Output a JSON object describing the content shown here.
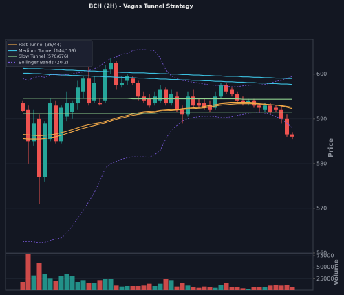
{
  "chart_data": {
    "type": "candlestick",
    "title": "BCH (2H) - Vegas Tunnel Strategy",
    "ylabel": "Price",
    "ylim": [
      560,
      607.8
    ],
    "yticks": [
      560,
      570,
      580,
      590,
      600
    ],
    "grid": true,
    "legend": "upper left",
    "up_color": "#26a69a",
    "down_color": "#ef5350",
    "ohlc": {
      "open": [
        593.5,
        592,
        585,
        590,
        577,
        585.5,
        593,
        585,
        590.5,
        591.5,
        593.5,
        596,
        599,
        594,
        593.5,
        594,
        601,
        602.5,
        597.5,
        598.5,
        599,
        598,
        595,
        594.5,
        593.5,
        594,
        596.5,
        593.5,
        595,
        592,
        591,
        595,
        593.5,
        593.5,
        593,
        592.5,
        595,
        597.5,
        596.5,
        595.5,
        594,
        593.5,
        594,
        593,
        592,
        593,
        592.5,
        592,
        590,
        586.5
      ],
      "high": [
        594,
        593,
        592,
        591,
        589.5,
        594.5,
        594,
        593,
        596,
        594,
        598.5,
        599.5,
        601.5,
        599.5,
        594.5,
        602,
        603.5,
        603,
        599.5,
        600,
        599.5,
        598.5,
        596,
        595.5,
        596,
        597.5,
        597,
        596.5,
        596,
        593,
        596,
        596.5,
        594.5,
        594.5,
        594,
        596,
        598,
        598,
        597,
        596,
        595,
        594.5,
        594.5,
        593.5,
        593.5,
        593.5,
        593,
        593,
        591,
        587
      ],
      "low": [
        591.5,
        580,
        584,
        571,
        576,
        585,
        584.5,
        584.5,
        589.5,
        590,
        592,
        594.5,
        593,
        593.5,
        593,
        593.5,
        600,
        596.5,
        597,
        597.5,
        597.5,
        594,
        593.5,
        592.5,
        593,
        593.5,
        593,
        593,
        591.5,
        589,
        590.5,
        592.5,
        592.5,
        592,
        591.5,
        592,
        594.5,
        595.5,
        595,
        593.5,
        593,
        593,
        592.5,
        591.5,
        591.5,
        591,
        591.5,
        589,
        586,
        585.5
      ],
      "close": [
        591.8,
        585,
        589,
        577,
        589,
        593.5,
        585,
        592.5,
        593.5,
        593.5,
        597,
        599,
        593.5,
        598,
        593.3,
        601,
        602.5,
        597.5,
        598,
        599.5,
        598,
        595,
        594,
        593,
        595,
        596.5,
        593.5,
        595.5,
        592,
        591,
        595,
        593,
        593,
        592.5,
        592,
        595,
        597.5,
        596,
        595.5,
        594,
        593.5,
        594,
        593,
        592.5,
        593,
        591.5,
        592,
        590,
        586.5,
        586
      ]
    },
    "overlays": [
      {
        "name": "Fast Tunnel (36/44)",
        "color": "#f0a848",
        "dash": false,
        "lines": [
          [
            586.5,
            586.4,
            586.3,
            586.2,
            586.3,
            586.4,
            586.6,
            586.9,
            587.2,
            587.6,
            588.0,
            588.4,
            588.7,
            588.9,
            589.1,
            589.4,
            589.8,
            590.2,
            590.5,
            590.8,
            591.1,
            591.3,
            591.5,
            591.6,
            591.7,
            591.9,
            592.0,
            592.1,
            592.1,
            592.3,
            592.4,
            592.5,
            592.6,
            592.8,
            593.0,
            593.2,
            593.4,
            593.5,
            593.6,
            593.6,
            593.6,
            593.6,
            593.5,
            593.4,
            593.3,
            593.2,
            593.1,
            592.9,
            592.6,
            592.3
          ],
          [
            585.6,
            585.5,
            585.5,
            585.5,
            585.6,
            585.8,
            586.0,
            586.3,
            586.7,
            587.1,
            587.5,
            587.9,
            588.2,
            588.5,
            588.8,
            589.1,
            589.5,
            589.9,
            590.2,
            590.5,
            590.8,
            591.0,
            591.2,
            591.4,
            591.5,
            591.7,
            591.8,
            591.9,
            592.0,
            592.1,
            592.2,
            592.3,
            592.4,
            592.5,
            592.7,
            592.9,
            593.1,
            593.2,
            593.3,
            593.4,
            593.4,
            593.4,
            593.4,
            593.3,
            593.3,
            593.2,
            593.1,
            593.0,
            592.8,
            592.6
          ]
        ]
      },
      {
        "name": "Medium Tunnel (144/169)",
        "color": "#3cc0e0",
        "dash": false,
        "lines": [
          [
            601.3,
            601.2,
            601.2,
            601.2,
            601.1,
            601.1,
            601.0,
            601.0,
            600.9,
            600.9,
            600.8,
            600.8,
            600.7,
            600.7,
            600.6,
            600.6,
            600.5,
            600.5,
            600.4,
            600.4,
            600.3,
            600.3,
            600.3,
            600.2,
            600.2,
            600.1,
            600.1,
            600.0,
            600.0,
            599.9,
            599.9,
            599.8,
            599.8,
            599.7,
            599.7,
            599.6,
            599.6,
            599.5,
            599.5,
            599.5,
            599.4,
            599.4,
            599.3,
            599.3,
            599.2,
            599.2,
            599.1,
            599.1,
            599.0,
            599.0
          ],
          [
            600.2,
            600.2,
            600.1,
            600.1,
            600.0,
            599.9,
            599.9,
            599.8,
            599.8,
            599.7,
            599.7,
            599.6,
            599.6,
            599.5,
            599.5,
            599.4,
            599.4,
            599.3,
            599.3,
            599.2,
            599.2,
            599.1,
            599.1,
            599.0,
            599.0,
            598.9,
            598.9,
            598.8,
            598.8,
            598.7,
            598.7,
            598.6,
            598.6,
            598.5,
            598.5,
            598.4,
            598.4,
            598.3,
            598.3,
            598.2,
            598.2,
            598.1,
            598.1,
            598.0,
            598.0,
            597.9,
            597.9,
            597.8,
            597.8,
            597.7
          ]
        ]
      },
      {
        "name": "Slow Tunnel (576/676)",
        "color": "#8fd18f",
        "dash": false,
        "lines": [
          [
            594.6,
            594.6,
            594.6,
            594.6,
            594.6,
            594.6,
            594.6,
            594.6,
            594.6,
            594.6,
            594.6,
            594.6,
            594.6,
            594.6,
            594.6,
            594.6,
            594.6,
            594.6,
            594.6,
            594.6,
            594.5,
            594.5,
            594.5,
            594.5,
            594.5,
            594.5,
            594.5,
            594.5,
            594.5,
            594.5,
            594.5,
            594.5,
            594.5,
            594.5,
            594.5,
            594.5,
            594.5,
            594.5,
            594.5,
            594.5,
            594.4,
            594.4,
            594.4,
            594.4,
            594.4,
            594.4,
            594.4,
            594.4,
            594.4,
            594.4
          ],
          [
            591.2,
            591.2,
            591.2,
            591.2,
            591.2,
            591.2,
            591.2,
            591.2,
            591.2,
            591.2,
            591.2,
            591.2,
            591.2,
            591.2,
            591.2,
            591.2,
            591.2,
            591.2,
            591.2,
            591.2,
            591.2,
            591.2,
            591.2,
            591.2,
            591.2,
            591.3,
            591.3,
            591.3,
            591.3,
            591.3,
            591.3,
            591.3,
            591.3,
            591.3,
            591.3,
            591.3,
            591.3,
            591.3,
            591.3,
            591.3,
            591.3,
            591.3,
            591.3,
            591.3,
            591.3,
            591.3,
            591.3,
            591.3,
            591.3,
            591.3
          ]
        ]
      },
      {
        "name": "Bollinger Bands (20,2)",
        "color": "#7c5ce0",
        "dash": true,
        "lines": [
          [
            599.0,
            598.6,
            599.2,
            599.5,
            599.3,
            599.8,
            600.0,
            599.8,
            599.9,
            600.1,
            600.3,
            600.5,
            600.8,
            601.2,
            601.8,
            602.8,
            603.5,
            603.8,
            604.5,
            604.6,
            605.3,
            605.5,
            605.5,
            605.4,
            605.2,
            603.5,
            601.0,
            599.6,
            599.0,
            598.6,
            598.4,
            598.2,
            598.0,
            597.8,
            597.6,
            597.5,
            597.5,
            597.3,
            597.2,
            597.2,
            597.4,
            597.5,
            597.6,
            597.6,
            597.7,
            598.0,
            598.4,
            598.6,
            599.0,
            599.5
          ],
          [
            562.5,
            562.6,
            562.5,
            562.3,
            562.4,
            562.8,
            563.2,
            563.4,
            564.5,
            566.0,
            567.8,
            569.5,
            571.5,
            573.5,
            576.0,
            579.0,
            580.0,
            580.5,
            581.0,
            581.3,
            581.5,
            581.5,
            581.5,
            581.4,
            582.0,
            583.0,
            585.5,
            587.5,
            588.5,
            589.5,
            590.0,
            590.3,
            590.5,
            590.6,
            590.6,
            590.5,
            590.3,
            590.3,
            590.5,
            590.8,
            591.0,
            591.2,
            591.3,
            591.4,
            591.2,
            591.0,
            590.5,
            590.0,
            589.0,
            588.0
          ]
        ]
      }
    ],
    "volume": {
      "label": "Volume",
      "ylim": [
        0,
        78000
      ],
      "yticks": [
        25000,
        50000,
        75000
      ],
      "values": [
        18000,
        78000,
        32000,
        60000,
        35000,
        25000,
        20000,
        30000,
        35000,
        30000,
        18000,
        22000,
        15000,
        16000,
        22000,
        24000,
        24000,
        10000,
        8000,
        9000,
        9000,
        9000,
        10000,
        14000,
        9000,
        14000,
        24000,
        22000,
        8000,
        16000,
        10000,
        7000,
        5000,
        8000,
        6000,
        5000,
        12000,
        16000,
        7000,
        6000,
        4000,
        3000,
        6000,
        7000,
        6000,
        10000,
        12000,
        10000,
        11000,
        6000
      ]
    }
  }
}
